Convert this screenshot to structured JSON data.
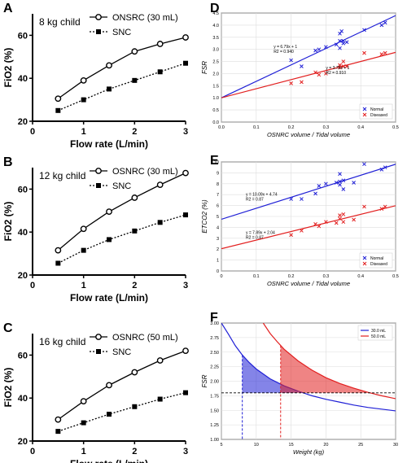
{
  "chart_data": [
    {
      "panel": "A",
      "type": "line",
      "title": "8 kg child",
      "xlabel": "Flow rate (L/min)",
      "ylabel": "FiO2 (%)",
      "xlim": [
        0,
        3
      ],
      "ylim": [
        20,
        70
      ],
      "xticks": [
        0,
        1,
        2,
        3
      ],
      "yticks": [
        20,
        40,
        60
      ],
      "legend": "top-right",
      "series": [
        {
          "name": "ONSRC (30 mL)",
          "marker": "open-circle",
          "style": "solid",
          "x": [
            0.5,
            1,
            1.5,
            2,
            2.5,
            3
          ],
          "y": [
            30.5,
            39,
            46,
            52.5,
            56,
            59
          ]
        },
        {
          "name": "SNC",
          "marker": "square",
          "style": "dotted",
          "x": [
            0.5,
            1,
            1.5,
            2,
            2.5,
            3
          ],
          "y": [
            25,
            30,
            35,
            39,
            43,
            47
          ]
        }
      ]
    },
    {
      "panel": "B",
      "type": "line",
      "title": "12 kg child",
      "xlabel": "Flow rate (L/min)",
      "ylabel": "FiO2 (%)",
      "xlim": [
        0,
        3
      ],
      "ylim": [
        20,
        70
      ],
      "xticks": [
        0,
        1,
        2,
        3
      ],
      "yticks": [
        20,
        40,
        60
      ],
      "legend": "top-right",
      "series": [
        {
          "name": "OSNRC (30 mL)",
          "marker": "open-circle",
          "style": "solid",
          "x": [
            0.5,
            1,
            1.5,
            2,
            2.5,
            3
          ],
          "y": [
            31.5,
            41.5,
            49.5,
            56,
            62,
            67.5
          ]
        },
        {
          "name": "SNC",
          "marker": "square",
          "style": "dotted",
          "x": [
            0.5,
            1,
            1.5,
            2,
            2.5,
            3
          ],
          "y": [
            25.5,
            31.5,
            36.5,
            40.5,
            44.5,
            48
          ]
        }
      ]
    },
    {
      "panel": "C",
      "type": "line",
      "title": "16 kg child",
      "xlabel": "Flow rate (L/min)",
      "ylabel": "FiO2 (%)",
      "xlim": [
        0,
        3
      ],
      "ylim": [
        20,
        70
      ],
      "xticks": [
        0,
        1,
        2,
        3
      ],
      "yticks": [
        20,
        40,
        60
      ],
      "legend": "top-right",
      "series": [
        {
          "name": "OSNRC (50 mL)",
          "marker": "open-circle",
          "style": "solid",
          "x": [
            0.5,
            1,
            1.5,
            2,
            2.5,
            3
          ],
          "y": [
            30,
            38.5,
            46,
            52,
            57.5,
            62
          ]
        },
        {
          "name": "SNC",
          "marker": "square",
          "style": "dotted",
          "x": [
            0.5,
            1,
            1.5,
            2,
            2.5,
            3
          ],
          "y": [
            24.5,
            28.5,
            32.5,
            36,
            39.5,
            42.5
          ]
        }
      ]
    },
    {
      "panel": "D",
      "type": "scatter",
      "title": "",
      "xlabel": "OSNRC volume / Tidal volume",
      "ylabel": "FSR",
      "xlim": [
        0,
        0.5
      ],
      "ylim": [
        0,
        4.5
      ],
      "xticks": [
        0.0,
        0.1,
        0.2,
        0.3,
        0.4,
        0.5
      ],
      "yticks": [
        0.0,
        0.5,
        1.0,
        1.5,
        2.0,
        2.5,
        3.0,
        3.5,
        4.0,
        4.5
      ],
      "grid": true,
      "legend": "bottom-right",
      "series": [
        {
          "name": "Normal",
          "color": "#1f1fd6",
          "x": [
            0.2,
            0.23,
            0.27,
            0.28,
            0.3,
            0.33,
            0.34,
            0.34,
            0.345,
            0.35,
            0.34,
            0.35,
            0.36,
            0.41,
            0.46,
            0.47
          ],
          "y": [
            2.55,
            2.3,
            2.95,
            3.0,
            3.1,
            3.2,
            3.35,
            3.65,
            3.75,
            3.35,
            3.05,
            3.25,
            3.3,
            3.8,
            4.0,
            4.1
          ],
          "fit": {
            "slope": 6.79,
            "intercept": 1,
            "label": "y = 6.79x + 1",
            "r2": "R2 = 0.940"
          }
        },
        {
          "name": "Diseased",
          "color": "#e21f1f",
          "x": [
            0.2,
            0.23,
            0.27,
            0.28,
            0.3,
            0.34,
            0.34,
            0.35,
            0.35,
            0.36,
            0.41,
            0.46,
            0.47
          ],
          "y": [
            1.6,
            1.65,
            2.05,
            1.95,
            2.0,
            2.25,
            2.35,
            2.5,
            2.3,
            2.3,
            2.85,
            2.8,
            2.85
          ],
          "fit": {
            "slope": 3.75,
            "intercept": 1,
            "label": "y = 3.75x + 1",
            "r2": "R2 = 0.910"
          }
        }
      ]
    },
    {
      "panel": "E",
      "type": "scatter",
      "title": "",
      "xlabel": "OSNRC volume / Tidal volume",
      "ylabel": "ETCO2 (%)",
      "xlim": [
        0,
        0.5
      ],
      "ylim": [
        0,
        10
      ],
      "xticks": [
        0.0,
        0.1,
        0.2,
        0.3,
        0.4,
        0.5
      ],
      "yticks": [
        0,
        1,
        2,
        3,
        4,
        5,
        6,
        7,
        8,
        9,
        10
      ],
      "grid": true,
      "legend": "bottom-right",
      "series": [
        {
          "name": "Normal",
          "color": "#1f1fd6",
          "x": [
            0.2,
            0.23,
            0.27,
            0.28,
            0.3,
            0.33,
            0.34,
            0.34,
            0.34,
            0.35,
            0.35,
            0.38,
            0.41,
            0.46,
            0.47
          ],
          "y": [
            6.6,
            6.6,
            7.1,
            7.8,
            8.0,
            8.1,
            7.9,
            8.9,
            8.2,
            8.3,
            7.5,
            8.1,
            9.8,
            9.3,
            9.5
          ],
          "fit": {
            "slope": 10.09,
            "intercept": 4.74,
            "label": "y = 10.09x + 4.74",
            "r2": "R2 = 0.87"
          }
        },
        {
          "name": "Diseased",
          "color": "#e21f1f",
          "x": [
            0.2,
            0.23,
            0.27,
            0.28,
            0.3,
            0.33,
            0.34,
            0.34,
            0.35,
            0.35,
            0.38,
            0.41,
            0.46,
            0.47
          ],
          "y": [
            3.3,
            3.7,
            4.3,
            4.1,
            4.5,
            4.4,
            4.8,
            5.1,
            4.5,
            5.2,
            4.7,
            5.9,
            5.7,
            5.9
          ],
          "fit": {
            "slope": 7.89,
            "intercept": 2.04,
            "label": "y = 7.89x + 2.04",
            "r2": "R2 = 0.87"
          }
        }
      ]
    },
    {
      "panel": "F",
      "type": "line",
      "title": "",
      "xlabel": "Weight (kg)",
      "ylabel": "FSR",
      "xlim": [
        5,
        30
      ],
      "ylim": [
        1.0,
        3.0
      ],
      "xticks": [
        5,
        10,
        15,
        20,
        25,
        30
      ],
      "yticks": [
        1.0,
        1.25,
        1.5,
        1.75,
        2.0,
        2.25,
        2.5,
        2.75,
        3.0
      ],
      "grid": true,
      "legend": "top-right",
      "threshold_fsr": 1.8,
      "series": [
        {
          "name": "30.0 mL",
          "color": "#1f1fd6",
          "x": [
            5,
            6,
            7,
            8,
            9,
            10,
            12,
            14,
            16,
            18,
            20,
            22,
            24,
            26,
            28,
            30
          ],
          "y": [
            3.0,
            2.81,
            2.61,
            2.45,
            2.32,
            2.21,
            2.04,
            1.92,
            1.83,
            1.75,
            1.69,
            1.64,
            1.59,
            1.55,
            1.52,
            1.49
          ],
          "shaded_range": [
            8,
            16
          ]
        },
        {
          "name": "50.0 mL",
          "color": "#e21f1f",
          "x": [
            11,
            12,
            13,
            14,
            16,
            18,
            20,
            22,
            24,
            26,
            28,
            30
          ],
          "y": [
            3.0,
            2.82,
            2.68,
            2.55,
            2.35,
            2.19,
            2.06,
            1.96,
            1.88,
            1.81,
            1.75,
            1.7
          ],
          "shaded_range": [
            13.5,
            26
          ]
        }
      ]
    }
  ]
}
